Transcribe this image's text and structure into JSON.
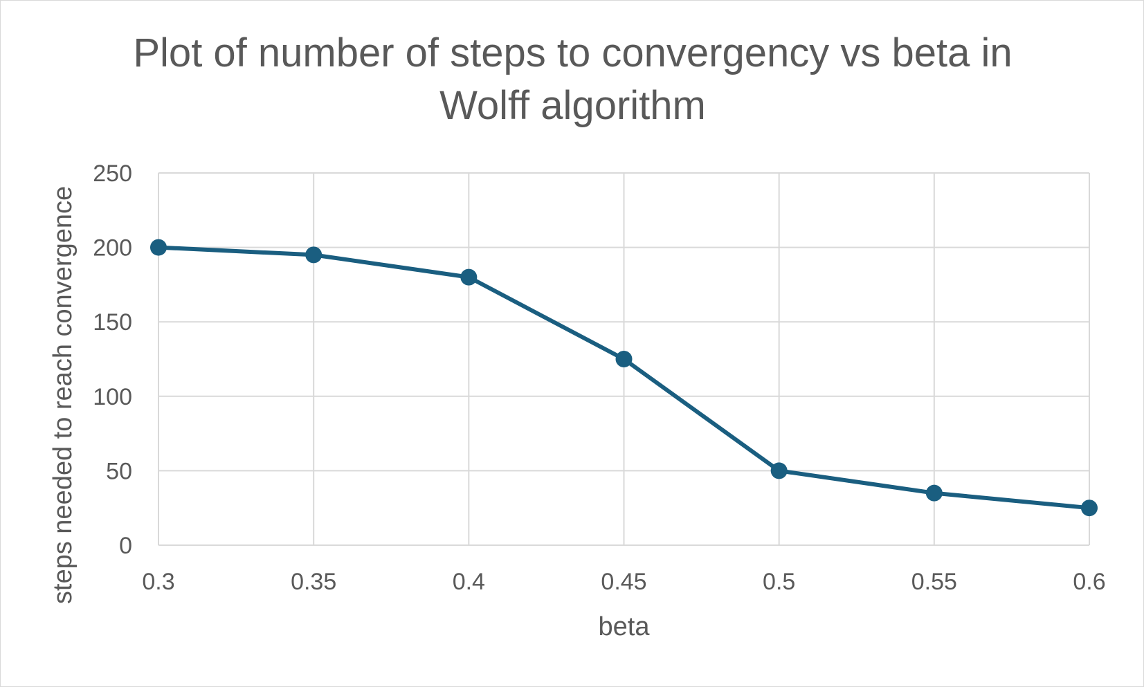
{
  "chart_data": {
    "type": "line",
    "title": "Plot of number of steps to convergency vs beta in\nWolff algorithm",
    "xlabel": "beta",
    "ylabel": "steps needed to reach convergence",
    "x": [
      0.3,
      0.35,
      0.4,
      0.45,
      0.5,
      0.55,
      0.6
    ],
    "x_tick_labels": [
      "0.3",
      "0.35",
      "0.4",
      "0.45",
      "0.5",
      "0.55",
      "0.6"
    ],
    "y_ticks": [
      0,
      50,
      100,
      150,
      200,
      250
    ],
    "y_tick_labels": [
      "0",
      "50",
      "100",
      "150",
      "200",
      "250"
    ],
    "series": [
      {
        "values": [
          200,
          195,
          180,
          125,
          50,
          35,
          25
        ],
        "color": "#1a5e80"
      }
    ],
    "xlim": [
      0.3,
      0.6
    ],
    "ylim": [
      0,
      250
    ],
    "grid": true,
    "legend": "none",
    "colors": {
      "gridline": "#d9d9d9",
      "axis_text": "#595959",
      "background": "#ffffff"
    }
  }
}
